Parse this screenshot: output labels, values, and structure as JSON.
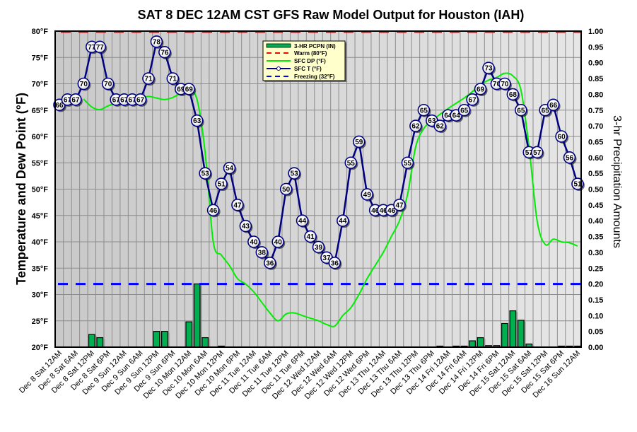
{
  "chart_data": {
    "type": "line",
    "title": "SAT 8 DEC 12AM CST GFS Raw Model Output for Houston (IAH)",
    "ylabel": "Temperature and Dew Point (°F)",
    "y2label": "3-hr Precipitation Amounts",
    "ylim": [
      20,
      80
    ],
    "y2lim": [
      0,
      1.0
    ],
    "yticks": [
      "20°F",
      "25°F",
      "30°F",
      "35°F",
      "40°F",
      "45°F",
      "50°F",
      "55°F",
      "60°F",
      "65°F",
      "70°F",
      "75°F",
      "80°F"
    ],
    "y2ticks": [
      "0.00",
      "0.05",
      "0.10",
      "0.15",
      "0.20",
      "0.25",
      "0.30",
      "0.35",
      "0.40",
      "0.45",
      "0.50",
      "0.55",
      "0.60",
      "0.65",
      "0.70",
      "0.75",
      "0.80",
      "0.85",
      "0.90",
      "0.95",
      "1.00"
    ],
    "grid": true,
    "legend_position": "top-center",
    "x_labels": [
      "Dec 8 Sat 12AM",
      "Dec 8 Sat 6AM",
      "Dec 8 Sat 12PM",
      "Dec 8 Sat 6PM",
      "Dec 9 Sun 12AM",
      "Dec 9 Sun 6AM",
      "Dec 9 Sun 12PM",
      "Dec 9 Sun 6PM",
      "Dec 10 Mon 12AM",
      "Dec 10 Mon 6AM",
      "Dec 10 Mon 12PM",
      "Dec 10 Mon 6PM",
      "Dec 11 Tue 12AM",
      "Dec 11 Tue 6AM",
      "Dec 11 Tue 12PM",
      "Dec 11 Tue 6PM",
      "Dec 12 Wed 12AM",
      "Dec 12 Wed 6AM",
      "Dec 12 Wed 12PM",
      "Dec 12 Wed 6PM",
      "Dec 13 Thu 12AM",
      "Dec 13 Thu 6AM",
      "Dec 13 Thu 12PM",
      "Dec 13 Thu 6PM",
      "Dec 14 Fri 12AM",
      "Dec 14 Fri 6AM",
      "Dec 14 Fri 12PM",
      "Dec 14 Fri 6PM",
      "Dec 15 Sat 12AM",
      "Dec 15 Sat 6AM",
      "Dec 15 Sat 12PM",
      "Dec 15 Sat 6PM",
      "Dec 16 Sun 12AM"
    ],
    "x_step_hours": 3,
    "series": [
      {
        "name": "SFC T (°F)",
        "kind": "line-markers-labeled",
        "color": "#000080",
        "values": [
          66,
          67,
          67,
          70,
          77,
          77,
          70,
          67,
          67,
          67,
          67,
          71,
          78,
          76,
          71,
          69,
          69,
          63,
          53,
          46,
          51,
          54,
          47,
          43,
          40,
          38,
          36,
          40,
          50,
          53,
          44,
          41,
          39,
          37,
          36,
          44,
          55,
          59,
          49,
          46,
          46,
          46,
          47,
          55,
          62,
          65,
          63,
          62,
          64,
          64,
          65,
          67,
          69,
          73,
          70,
          70,
          68,
          65,
          57,
          57,
          65,
          66,
          60,
          56,
          51
        ]
      },
      {
        "name": "SFC DP (°F)",
        "kind": "line",
        "color": "#00ee00",
        "values": [
          null,
          null,
          null,
          67.1,
          65.6,
          65.1,
          65.8,
          66.4,
          66.8,
          67.0,
          67.2,
          67.6,
          67.3,
          67.0,
          67.4,
          68.2,
          68.6,
          67.0,
          57,
          40,
          37.5,
          35.5,
          33,
          32,
          30.5,
          28.5,
          26.5,
          25,
          26.3,
          26.5,
          26,
          25.5,
          25,
          24.3,
          24,
          26,
          27.5,
          30,
          33,
          35.5,
          38,
          41,
          44,
          49,
          58,
          61.5,
          63,
          64.2,
          65.3,
          66.3,
          67.3,
          68.5,
          69.8,
          70.7,
          71.2,
          72,
          71.5,
          68.8,
          58,
          44,
          39.5,
          40.5,
          40,
          39.8,
          39.2
        ]
      },
      {
        "name": "3-HR PCPN (IN)",
        "kind": "bar",
        "axis": "right",
        "color": "#00b050",
        "values": [
          0,
          0,
          0,
          0,
          0.04,
          0.03,
          0,
          0,
          0,
          0,
          0,
          0,
          0.05,
          0.05,
          0,
          0,
          0.08,
          0.2,
          0.03,
          0,
          0.002,
          0,
          0,
          0,
          0,
          0,
          0,
          0,
          0,
          0,
          0,
          0,
          0,
          0,
          0,
          0,
          0,
          0,
          0,
          0,
          0,
          0,
          0,
          0,
          0,
          0,
          0,
          0.002,
          0,
          0.002,
          0.002,
          0.02,
          0.03,
          0.005,
          0.005,
          0.075,
          0.115,
          0.085,
          0.01,
          0,
          0,
          0,
          0.002,
          0.002,
          0.002
        ]
      },
      {
        "name": "Warm (80°F)",
        "kind": "hline-dashed",
        "color": "#ff0000",
        "value": 80
      },
      {
        "name": "Freezing (32°F)",
        "kind": "hline-dashed",
        "color": "#0000ff",
        "value": 32
      }
    ]
  }
}
